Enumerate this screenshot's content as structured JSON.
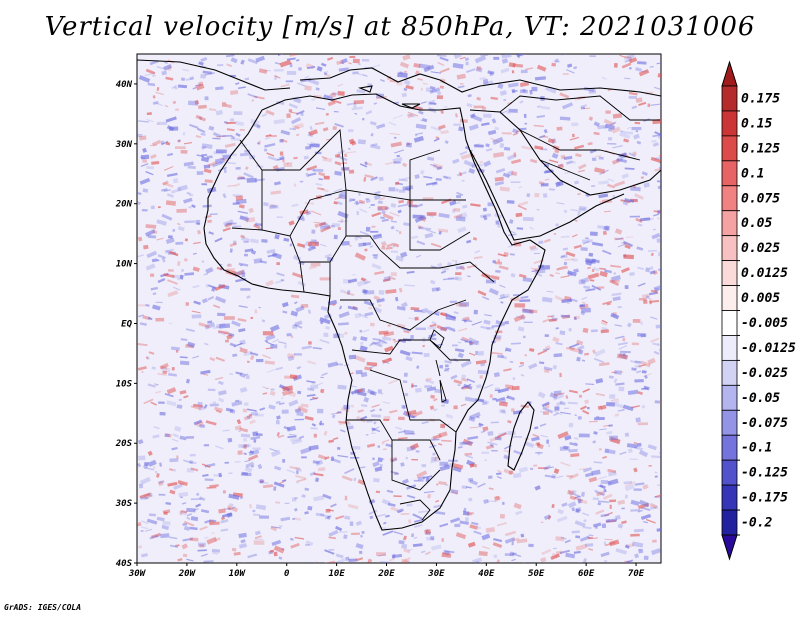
{
  "title": "Vertical velocity [m/s] at 850hPa, VT: 2021031006",
  "credit": "GrADS: IGES/COLA",
  "map": {
    "lat_range": [
      -40,
      45
    ],
    "lon_range": [
      -30,
      75
    ],
    "lat_ticks": [
      {
        "value": 40,
        "label": "40N"
      },
      {
        "value": 30,
        "label": "30N"
      },
      {
        "value": 20,
        "label": "20N"
      },
      {
        "value": 10,
        "label": "10N"
      },
      {
        "value": 0,
        "label": "EQ"
      },
      {
        "value": -10,
        "label": "10S"
      },
      {
        "value": -20,
        "label": "20S"
      },
      {
        "value": -30,
        "label": "30S"
      },
      {
        "value": -40,
        "label": "40S"
      }
    ],
    "lon_ticks": [
      {
        "value": -30,
        "label": "30W"
      },
      {
        "value": -20,
        "label": "20W"
      },
      {
        "value": -10,
        "label": "10W"
      },
      {
        "value": 0,
        "label": "0"
      },
      {
        "value": 10,
        "label": "10E"
      },
      {
        "value": 20,
        "label": "20E"
      },
      {
        "value": 30,
        "label": "30E"
      },
      {
        "value": 40,
        "label": "40E"
      },
      {
        "value": 50,
        "label": "50E"
      },
      {
        "value": 60,
        "label": "60E"
      },
      {
        "value": 70,
        "label": "70E"
      }
    ]
  },
  "colorbar": {
    "max_color": "#a01c1c",
    "min_color": "#2a0a9a",
    "levels": [
      {
        "label": "0.175",
        "color": "#b52a2a"
      },
      {
        "label": "0.15",
        "color": "#cc3535"
      },
      {
        "label": "0.125",
        "color": "#dc4a4a"
      },
      {
        "label": "0.1",
        "color": "#e86464"
      },
      {
        "label": "0.075",
        "color": "#f08282"
      },
      {
        "label": "0.05",
        "color": "#f5a2a2"
      },
      {
        "label": "0.025",
        "color": "#f8c1c1"
      },
      {
        "label": "0.0125",
        "color": "#fbdada"
      },
      {
        "label": "0.005",
        "color": "#fdeeee"
      },
      {
        "label": "-0.005",
        "color": "#ffffff"
      },
      {
        "label": "-0.0125",
        "color": "#ececfa"
      },
      {
        "label": "-0.025",
        "color": "#d2d2f5"
      },
      {
        "label": "-0.05",
        "color": "#b4b4ef"
      },
      {
        "label": "-0.075",
        "color": "#9494e6"
      },
      {
        "label": "-0.1",
        "color": "#7474dc"
      },
      {
        "label": "-0.125",
        "color": "#5252cc"
      },
      {
        "label": "-0.175",
        "color": "#3535b8"
      },
      {
        "label": "-0.2",
        "color": "#2222a0"
      }
    ]
  },
  "colors": {
    "land_border": "#000000",
    "field_base": "#efeefa",
    "positive": "#e05050",
    "negative": "#6a6ae0"
  }
}
